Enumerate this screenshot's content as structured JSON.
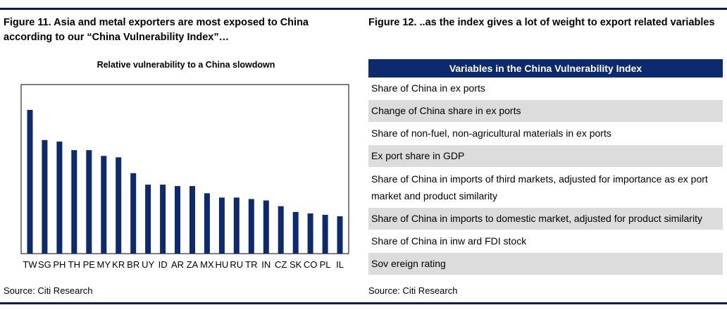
{
  "figure11": {
    "title": "Figure 11. Asia and metal exporters are most exposed to China according to our “China Vulnerability Index”…",
    "source": "Source: Citi Research"
  },
  "figure12": {
    "title": "Figure 12. ..as the index gives a lot of weight to export related variables",
    "source": "Source: Citi Research",
    "table": {
      "header": "Variables in the China Vulnerability Index",
      "rows": [
        "Share of China in ex ports",
        "Change of China share in ex ports",
        "Share of non-fuel, non-agricultural materials in ex ports",
        "Ex port share in GDP",
        "Share of China in imports of third markets, adjusted for importance as ex port market and product similarity",
        "Share of China in imports to domestic market, adjusted for product similarity",
        "Share of China in inw ard FDI stock",
        "Sov ereign rating"
      ]
    }
  },
  "chart_data": {
    "type": "bar",
    "title": "Relative vulnerability to a China slowdown",
    "xlabel": "",
    "ylabel": "",
    "ylim": [
      0,
      100
    ],
    "grid": false,
    "bar_color": "#0d2a6e",
    "categories": [
      "TW",
      "SG",
      "PH",
      "TH",
      "PE",
      "MY",
      "KR",
      "BR",
      "UY",
      "ID",
      "AR",
      "ZA",
      "MX",
      "HU",
      "RU",
      "TR",
      "IN",
      "CZ",
      "SK",
      "CO",
      "PL",
      "IL"
    ],
    "values": [
      100,
      79,
      78,
      72,
      72,
      68,
      67,
      56,
      48,
      48,
      47,
      47,
      42,
      39,
      39,
      38,
      37,
      33,
      29,
      28,
      27,
      26
    ]
  }
}
